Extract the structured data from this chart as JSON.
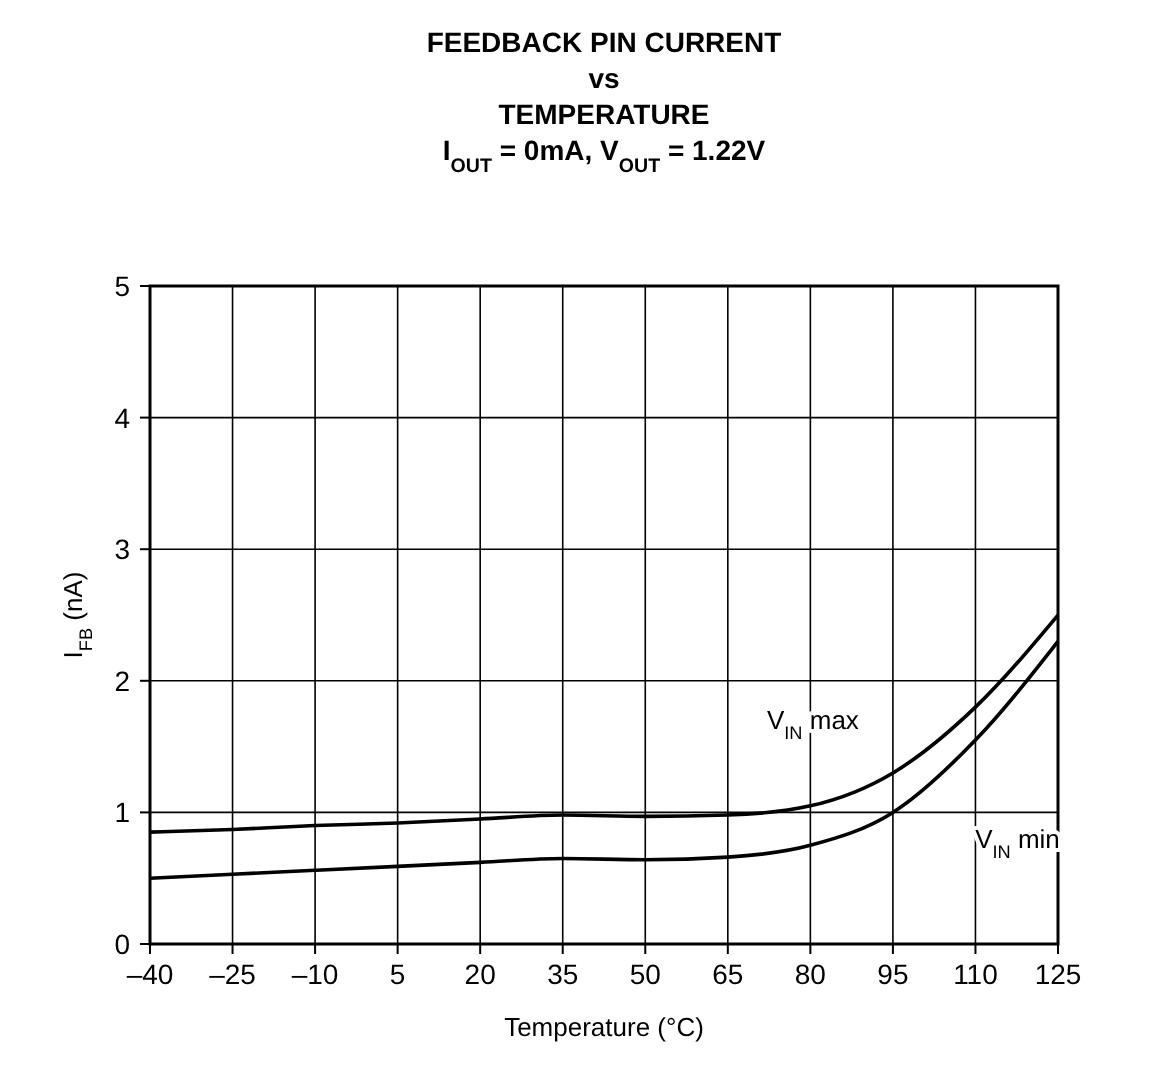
{
  "chart_data": {
    "type": "line",
    "title": "FEEDBACK PIN CURRENT\nvs\nTEMPERATURE",
    "subtitle": "I$_{OUT}$ = 0mA, V$_{OUT}$ = 1.22V",
    "xlabel": "Temperature (°C)",
    "ylabel": "I$_{FB}$ (nA)",
    "x": [
      -40,
      -25,
      -10,
      5,
      20,
      35,
      50,
      65,
      80,
      95,
      110,
      125
    ],
    "series": [
      {
        "name": "V$_{IN}$ max",
        "color": "#000000",
        "values": [
          0.85,
          0.87,
          0.9,
          0.92,
          0.95,
          0.98,
          0.97,
          0.98,
          1.05,
          1.3,
          1.8,
          2.5
        ]
      },
      {
        "name": "V$_{IN}$ min",
        "color": "#000000",
        "values": [
          0.5,
          0.53,
          0.56,
          0.59,
          0.62,
          0.65,
          0.64,
          0.66,
          0.75,
          1.0,
          1.55,
          2.3
        ]
      }
    ],
    "xlim": [
      -40,
      125
    ],
    "xticks": [
      {
        "value": -40,
        "label": "–40"
      },
      {
        "value": -25,
        "label": "–25"
      },
      {
        "value": -10,
        "label": "–10"
      },
      5,
      20,
      35,
      50,
      65,
      80,
      95,
      110,
      125
    ],
    "ylim": [
      0,
      5
    ],
    "yticks": [
      0,
      1,
      2,
      3,
      4,
      5
    ],
    "grid": true,
    "marker": "none",
    "line_style": "solid"
  }
}
